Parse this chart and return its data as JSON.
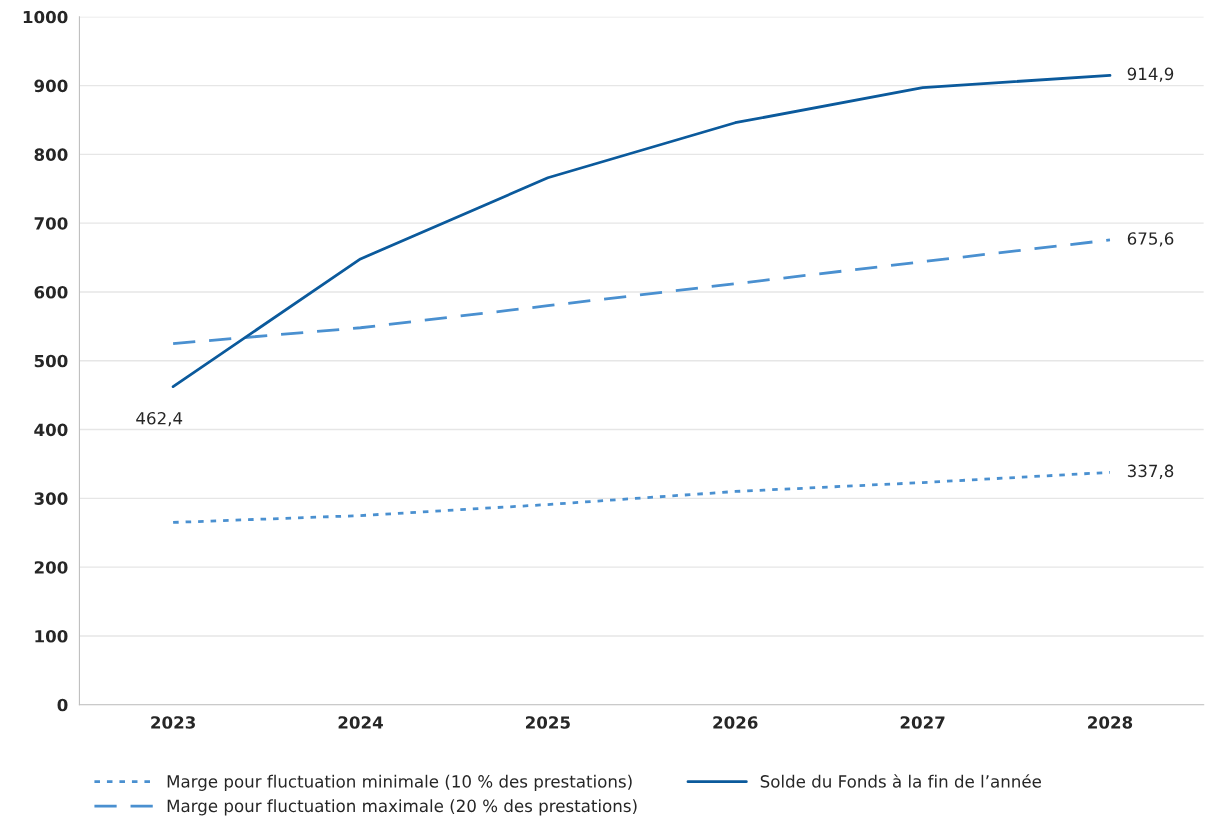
{
  "chart_data": {
    "type": "line",
    "categories": [
      "2023",
      "2024",
      "2025",
      "2026",
      "2027",
      "2028"
    ],
    "series": [
      {
        "name": "Marge pour fluctuation minimale (10 % des prestations)",
        "color": "#4a90d0",
        "line_style": "dotted",
        "values": [
          265,
          275,
          291,
          310,
          323,
          337.8
        ],
        "value_labels": [
          null,
          null,
          null,
          null,
          null,
          "337,8"
        ]
      },
      {
        "name": "Marge pour fluctuation maximale (20 % des prestations)",
        "color": "#4a90d0",
        "line_style": "dashed",
        "values": [
          525,
          548,
          580,
          612,
          644,
          675.6
        ],
        "value_labels": [
          null,
          null,
          null,
          null,
          null,
          "675,6"
        ]
      },
      {
        "name": "Solde du Fonds à la fin de l’année",
        "color": "#0b5a9c",
        "line_style": "solid",
        "values": [
          462.4,
          648,
          766,
          846,
          897,
          914.9
        ],
        "value_labels": [
          "462,4",
          null,
          null,
          null,
          null,
          "914,9"
        ]
      }
    ],
    "ylim": [
      0,
      1000
    ],
    "yticks": [
      0,
      100,
      200,
      300,
      400,
      500,
      600,
      700,
      800,
      900,
      1000
    ],
    "grid": "y",
    "legend": "bottom",
    "marker": "none"
  }
}
